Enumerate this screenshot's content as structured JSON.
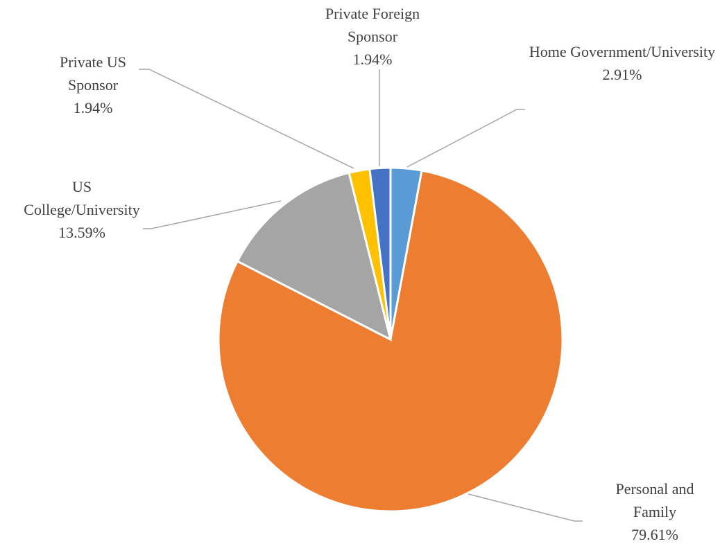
{
  "chart_data": {
    "type": "pie",
    "categories": [
      "Home Government/University",
      "Personal and Family",
      "US College/University",
      "Private US Sponsor",
      "Private Foreign Sponsor"
    ],
    "values": [
      2.91,
      79.61,
      13.59,
      1.94,
      1.94
    ],
    "value_labels": [
      "2.91%",
      "79.61%",
      "13.59%",
      "1.94%",
      "1.94%"
    ],
    "colors": [
      "#5b9bd5",
      "#ed7d31",
      "#a5a5a5",
      "#ffc000",
      "#4472c4"
    ]
  }
}
